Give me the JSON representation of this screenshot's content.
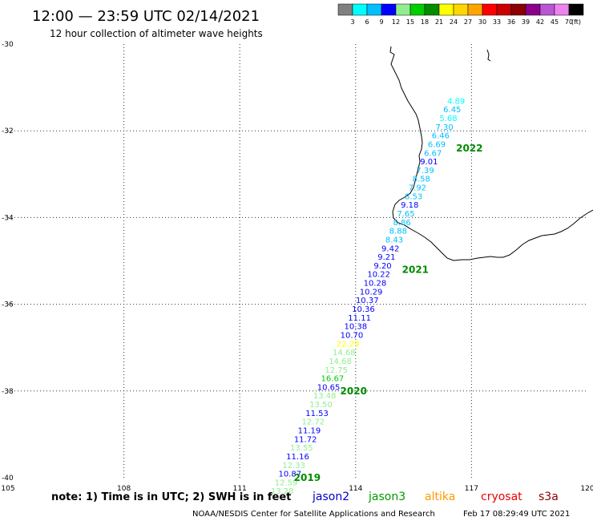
{
  "header": {
    "title": "12:00 — 23:59 UTC 02/14/2021",
    "subtitle": "12 hour collection of altimeter wave heights"
  },
  "colorbar": {
    "unit": "(ft)",
    "labels": [
      "3",
      "6",
      "9",
      "12",
      "15",
      "18",
      "21",
      "24",
      "27",
      "30",
      "33",
      "36",
      "39",
      "42",
      "45",
      "70"
    ],
    "colors": [
      "#808080",
      "#00ffff",
      "#00bfff",
      "#0000ff",
      "#90ee90",
      "#00cd00",
      "#008b00",
      "#ffff00",
      "#ffd700",
      "#ffa500",
      "#ff0000",
      "#cd0000",
      "#8b0000",
      "#8b008b",
      "#ba55d3",
      "#ee82ee",
      "#000000"
    ]
  },
  "footer": {
    "note": "note: 1) Time is in UTC; 2) SWH is in feet",
    "legend": [
      {
        "name": "jason2",
        "color": "#0000cd"
      },
      {
        "name": "jason3",
        "color": "#009900"
      },
      {
        "name": "altika",
        "color": "#ff9900"
      },
      {
        "name": "cryosat",
        "color": "#ee0000"
      },
      {
        "name": "s3a",
        "color": "#8b0000"
      }
    ],
    "credit": "NOAA/NESDIS Center for Satellite Applications and Research",
    "timestamp": "Feb 17 08:29:49 UTC 2021"
  },
  "chart_data": {
    "type": "scatter",
    "title": "12:00 — 23:59 UTC 02/14/2021",
    "subtitle": "12 hour collection of altimeter wave heights",
    "xlabel": "",
    "ylabel": "",
    "xlim": [
      105,
      120
    ],
    "ylim": [
      -40,
      -30
    ],
    "x_ticks": [
      105,
      108,
      111,
      114,
      117,
      120
    ],
    "y_ticks": [
      -30,
      -32,
      -34,
      -36,
      -38,
      -40
    ],
    "x_tick_labels": [
      "105",
      "108",
      "111",
      "114",
      "117",
      "120"
    ],
    "y_tick_labels": [
      "-30",
      "-32",
      "-34",
      "-36",
      "-38",
      "-40"
    ],
    "grid": true,
    "units": "ft",
    "points": [
      {
        "lon": 116.6,
        "lat": -31.3,
        "value": "4.89",
        "color": "#00ffff"
      },
      {
        "lon": 116.5,
        "lat": -31.5,
        "value": "6.45",
        "color": "#00bfff"
      },
      {
        "lon": 116.4,
        "lat": -31.7,
        "value": "5.68",
        "color": "#00ffff"
      },
      {
        "lon": 116.3,
        "lat": -31.9,
        "value": "7.30",
        "color": "#00bfff"
      },
      {
        "lon": 116.2,
        "lat": -32.1,
        "value": "6.46",
        "color": "#00bfff"
      },
      {
        "lon": 116.1,
        "lat": -32.3,
        "value": "6.69",
        "color": "#00bfff"
      },
      {
        "lon": 116.0,
        "lat": -32.5,
        "value": "6.67",
        "color": "#00bfff"
      },
      {
        "lon": 115.9,
        "lat": -32.7,
        "value": "9.01",
        "color": "#0000ff"
      },
      {
        "lon": 115.8,
        "lat": -32.9,
        "value": "7.39",
        "color": "#00bfff"
      },
      {
        "lon": 115.7,
        "lat": -33.1,
        "value": "8.58",
        "color": "#00bfff"
      },
      {
        "lon": 115.6,
        "lat": -33.3,
        "value": "7.92",
        "color": "#00bfff"
      },
      {
        "lon": 115.5,
        "lat": -33.5,
        "value": "8.53",
        "color": "#00bfff"
      },
      {
        "lon": 115.4,
        "lat": -33.7,
        "value": "9.18",
        "color": "#0000ff"
      },
      {
        "lon": 115.3,
        "lat": -33.9,
        "value": "7.65",
        "color": "#00bfff"
      },
      {
        "lon": 115.2,
        "lat": -34.1,
        "value": "8.86",
        "color": "#00bfff"
      },
      {
        "lon": 115.1,
        "lat": -34.3,
        "value": "8.88",
        "color": "#00bfff"
      },
      {
        "lon": 115.0,
        "lat": -34.5,
        "value": "8.43",
        "color": "#00bfff"
      },
      {
        "lon": 114.9,
        "lat": -34.7,
        "value": "9.42",
        "color": "#0000ff"
      },
      {
        "lon": 114.8,
        "lat": -34.9,
        "value": "9.21",
        "color": "#0000ff"
      },
      {
        "lon": 114.7,
        "lat": -35.1,
        "value": "9.20",
        "color": "#0000ff"
      },
      {
        "lon": 114.6,
        "lat": -35.3,
        "value": "10.22",
        "color": "#0000ff"
      },
      {
        "lon": 114.5,
        "lat": -35.5,
        "value": "10.28",
        "color": "#0000ff"
      },
      {
        "lon": 114.4,
        "lat": -35.7,
        "value": "10.29",
        "color": "#0000ff"
      },
      {
        "lon": 114.3,
        "lat": -35.9,
        "value": "10.37",
        "color": "#0000ff"
      },
      {
        "lon": 114.2,
        "lat": -36.1,
        "value": "10.36",
        "color": "#0000ff"
      },
      {
        "lon": 114.1,
        "lat": -36.3,
        "value": "11.11",
        "color": "#0000ff"
      },
      {
        "lon": 114.0,
        "lat": -36.5,
        "value": "10.38",
        "color": "#0000ff"
      },
      {
        "lon": 113.9,
        "lat": -36.7,
        "value": "10.70",
        "color": "#0000ff"
      },
      {
        "lon": 113.8,
        "lat": -36.9,
        "value": "22.29",
        "color": "#ffff00"
      },
      {
        "lon": 113.7,
        "lat": -37.1,
        "value": "14.68",
        "color": "#90ee90"
      },
      {
        "lon": 113.6,
        "lat": -37.3,
        "value": "14.68",
        "color": "#90ee90"
      },
      {
        "lon": 113.5,
        "lat": -37.5,
        "value": "12.75",
        "color": "#90ee90"
      },
      {
        "lon": 113.4,
        "lat": -37.7,
        "value": "16.67",
        "color": "#00cd00"
      },
      {
        "lon": 113.3,
        "lat": -37.9,
        "value": "10.65",
        "color": "#0000ff"
      },
      {
        "lon": 113.2,
        "lat": -38.1,
        "value": "13.48",
        "color": "#90ee90"
      },
      {
        "lon": 113.1,
        "lat": -38.3,
        "value": "13.50",
        "color": "#90ee90"
      },
      {
        "lon": 113.0,
        "lat": -38.5,
        "value": "11.53",
        "color": "#0000ff"
      },
      {
        "lon": 112.9,
        "lat": -38.7,
        "value": "12.72",
        "color": "#90ee90"
      },
      {
        "lon": 112.8,
        "lat": -38.9,
        "value": "11.19",
        "color": "#0000ff"
      },
      {
        "lon": 112.7,
        "lat": -39.1,
        "value": "11.72",
        "color": "#0000ff"
      },
      {
        "lon": 112.6,
        "lat": -39.3,
        "value": "13.55",
        "color": "#90ee90"
      },
      {
        "lon": 112.5,
        "lat": -39.5,
        "value": "11.16",
        "color": "#0000ff"
      },
      {
        "lon": 112.4,
        "lat": -39.7,
        "value": "12.33",
        "color": "#90ee90"
      },
      {
        "lon": 112.3,
        "lat": -39.9,
        "value": "10.87",
        "color": "#0000ff"
      },
      {
        "lon": 112.2,
        "lat": -40.1,
        "value": "12.59",
        "color": "#90ee90"
      },
      {
        "lon": 112.1,
        "lat": -40.3,
        "value": "13.28",
        "color": "#90ee90"
      }
    ],
    "time_labels": [
      {
        "lon": 116.6,
        "lat": -32.4,
        "text": "2022",
        "color": "#008b00"
      },
      {
        "lon": 115.2,
        "lat": -35.2,
        "text": "2021",
        "color": "#008b00"
      },
      {
        "lon": 113.6,
        "lat": -38.0,
        "text": "2020",
        "color": "#008b00"
      },
      {
        "lon": 112.4,
        "lat": -40.0,
        "text": "2019",
        "color": "#008b00"
      }
    ]
  }
}
